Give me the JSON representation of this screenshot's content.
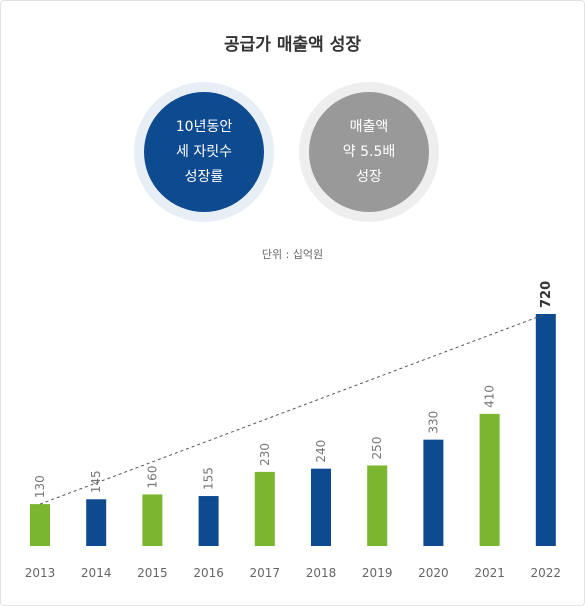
{
  "title": "공급가 매출액 성장",
  "circles": [
    {
      "lines": [
        "10년동안",
        "세 자릿수",
        "성장률"
      ],
      "color": "#0d4a8f"
    },
    {
      "lines": [
        "매출액",
        "약 5.5배",
        "성장"
      ],
      "color": "#999999"
    }
  ],
  "unit": "단위 : 십억원",
  "colors": {
    "green": "#7ab630",
    "blue": "#0d4a8f",
    "trend": "#555555"
  },
  "chart_data": {
    "type": "bar",
    "title": "",
    "xlabel": "",
    "ylabel": "",
    "categories": [
      "2013",
      "2014",
      "2015",
      "2016",
      "2017",
      "2018",
      "2019",
      "2020",
      "2021",
      "2022"
    ],
    "values": [
      130,
      145,
      160,
      155,
      230,
      240,
      250,
      330,
      410,
      720
    ],
    "bar_colors": [
      "green",
      "blue",
      "green",
      "blue",
      "green",
      "blue",
      "green",
      "blue",
      "green",
      "blue"
    ],
    "ylim": [
      0,
      720
    ],
    "grid": false,
    "legend": "none",
    "trendline": {
      "style": "dashed",
      "from": "2013",
      "to": "2022"
    }
  }
}
